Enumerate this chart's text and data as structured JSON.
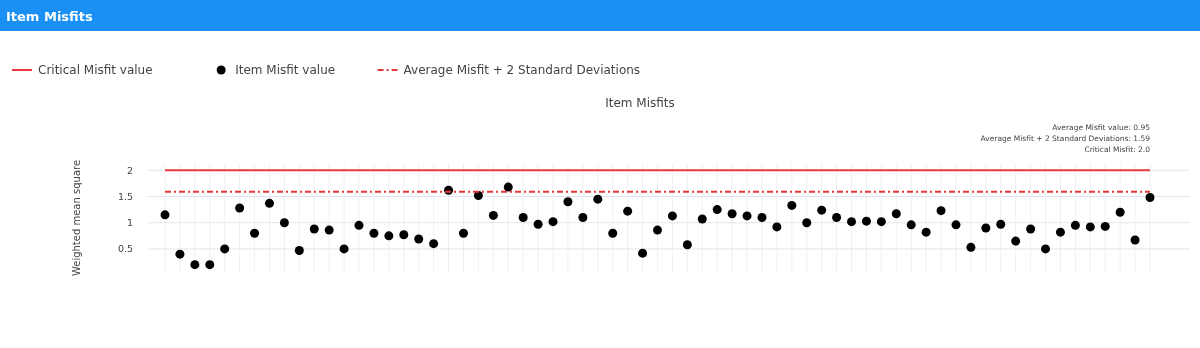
{
  "chart_data": {
    "type": "scatter",
    "title": "Item Misfits",
    "ylabel": "Weighted mean square",
    "annotations": [
      "Item Misfits",
      "Average Misfit value: 0.95",
      "Average Misfit + 2 Standard Deviations: 1.59",
      "Critical Misfit: 2.0"
    ],
    "categories": [
      null,
      null,
      null,
      null,
      null,
      null,
      null,
      null,
      null,
      null,
      null,
      null,
      null,
      null,
      null,
      null,
      null,
      null,
      null,
      null,
      null,
      null,
      null,
      null,
      null,
      null,
      null,
      null,
      null,
      null,
      null,
      null,
      null,
      null,
      null,
      null,
      null,
      null,
      null,
      null,
      null,
      null,
      null,
      null,
      null,
      null,
      null,
      null,
      null,
      null,
      null,
      null,
      null,
      null,
      null,
      null,
      null,
      null,
      null,
      null,
      null,
      null,
      null,
      null,
      null,
      null,
      null
    ],
    "series": [
      {
        "name": "Critical Misfit value",
        "type": "line",
        "color": "#e8383d",
        "line_style": "solid",
        "marker": "none",
        "values": [
          2,
          2,
          2,
          2,
          2,
          2,
          2,
          2,
          2,
          2,
          2,
          2,
          2,
          2,
          2,
          2,
          2,
          2,
          2,
          2,
          2,
          2,
          2,
          2,
          2,
          2,
          2,
          2,
          2,
          2,
          2,
          2,
          2,
          2,
          2,
          2,
          2,
          2,
          2,
          2,
          2,
          2,
          2,
          2,
          2,
          2,
          2,
          2,
          2,
          2,
          2,
          2,
          2,
          2,
          2,
          2,
          2,
          2,
          2,
          2,
          2,
          2,
          2,
          2,
          2,
          2,
          2
        ]
      },
      {
        "name": "Item Misfit value",
        "color": "#000000",
        "marker": "circle",
        "values": [
          1.15,
          0.4,
          0.2,
          0.2,
          0.5,
          1.28,
          0.8,
          1.37,
          1.0,
          0.47,
          0.88,
          0.86,
          0.5,
          0.95,
          0.8,
          0.75,
          0.77,
          0.69,
          0.6,
          1.62,
          0.8,
          1.52,
          1.14,
          1.68,
          1.1,
          0.97,
          1.02,
          1.4,
          1.1,
          1.45,
          0.8,
          1.22,
          0.42,
          0.86,
          1.13,
          0.58,
          1.07,
          1.25,
          1.17,
          1.13,
          1.1,
          0.92,
          1.33,
          1.0,
          1.24,
          1.1,
          1.02,
          1.03,
          1.02,
          1.17,
          0.96,
          0.82,
          1.23,
          0.96,
          0.53,
          0.9,
          0.97,
          0.65,
          0.88,
          0.5,
          0.82,
          0.95,
          0.92,
          0.93,
          1.2,
          0.67,
          1.48
        ]
      },
      {
        "name": "Average Misfit + 2 Standard Deviations",
        "type": "line",
        "color": "#e8383d",
        "line_style": "dashdot",
        "marker": "none",
        "values": [
          1.59,
          1.59,
          1.59,
          1.59,
          1.59,
          1.59,
          1.59,
          1.59,
          1.59,
          1.59,
          1.59,
          1.59,
          1.59,
          1.59,
          1.59,
          1.59,
          1.59,
          1.59,
          1.59,
          1.59,
          1.59,
          1.59,
          1.59,
          1.59,
          1.59,
          1.59,
          1.59,
          1.59,
          1.59,
          1.59,
          1.59,
          1.59,
          1.59,
          1.59,
          1.59,
          1.59,
          1.59,
          1.59,
          1.59,
          1.59,
          1.59,
          1.59,
          1.59,
          1.59,
          1.59,
          1.59,
          1.59,
          1.59,
          1.59,
          1.59,
          1.59,
          1.59,
          1.59,
          1.59,
          1.59,
          1.59,
          1.59,
          1.59,
          1.59,
          1.59,
          1.59,
          1.59,
          1.59,
          1.59,
          1.59,
          1.59,
          1.59
        ]
      }
    ],
    "ylim": [
      0.06,
      2.12
    ],
    "yticks": [
      0.5,
      1,
      1.5,
      2
    ],
    "grid": true,
    "legend": "top left"
  }
}
